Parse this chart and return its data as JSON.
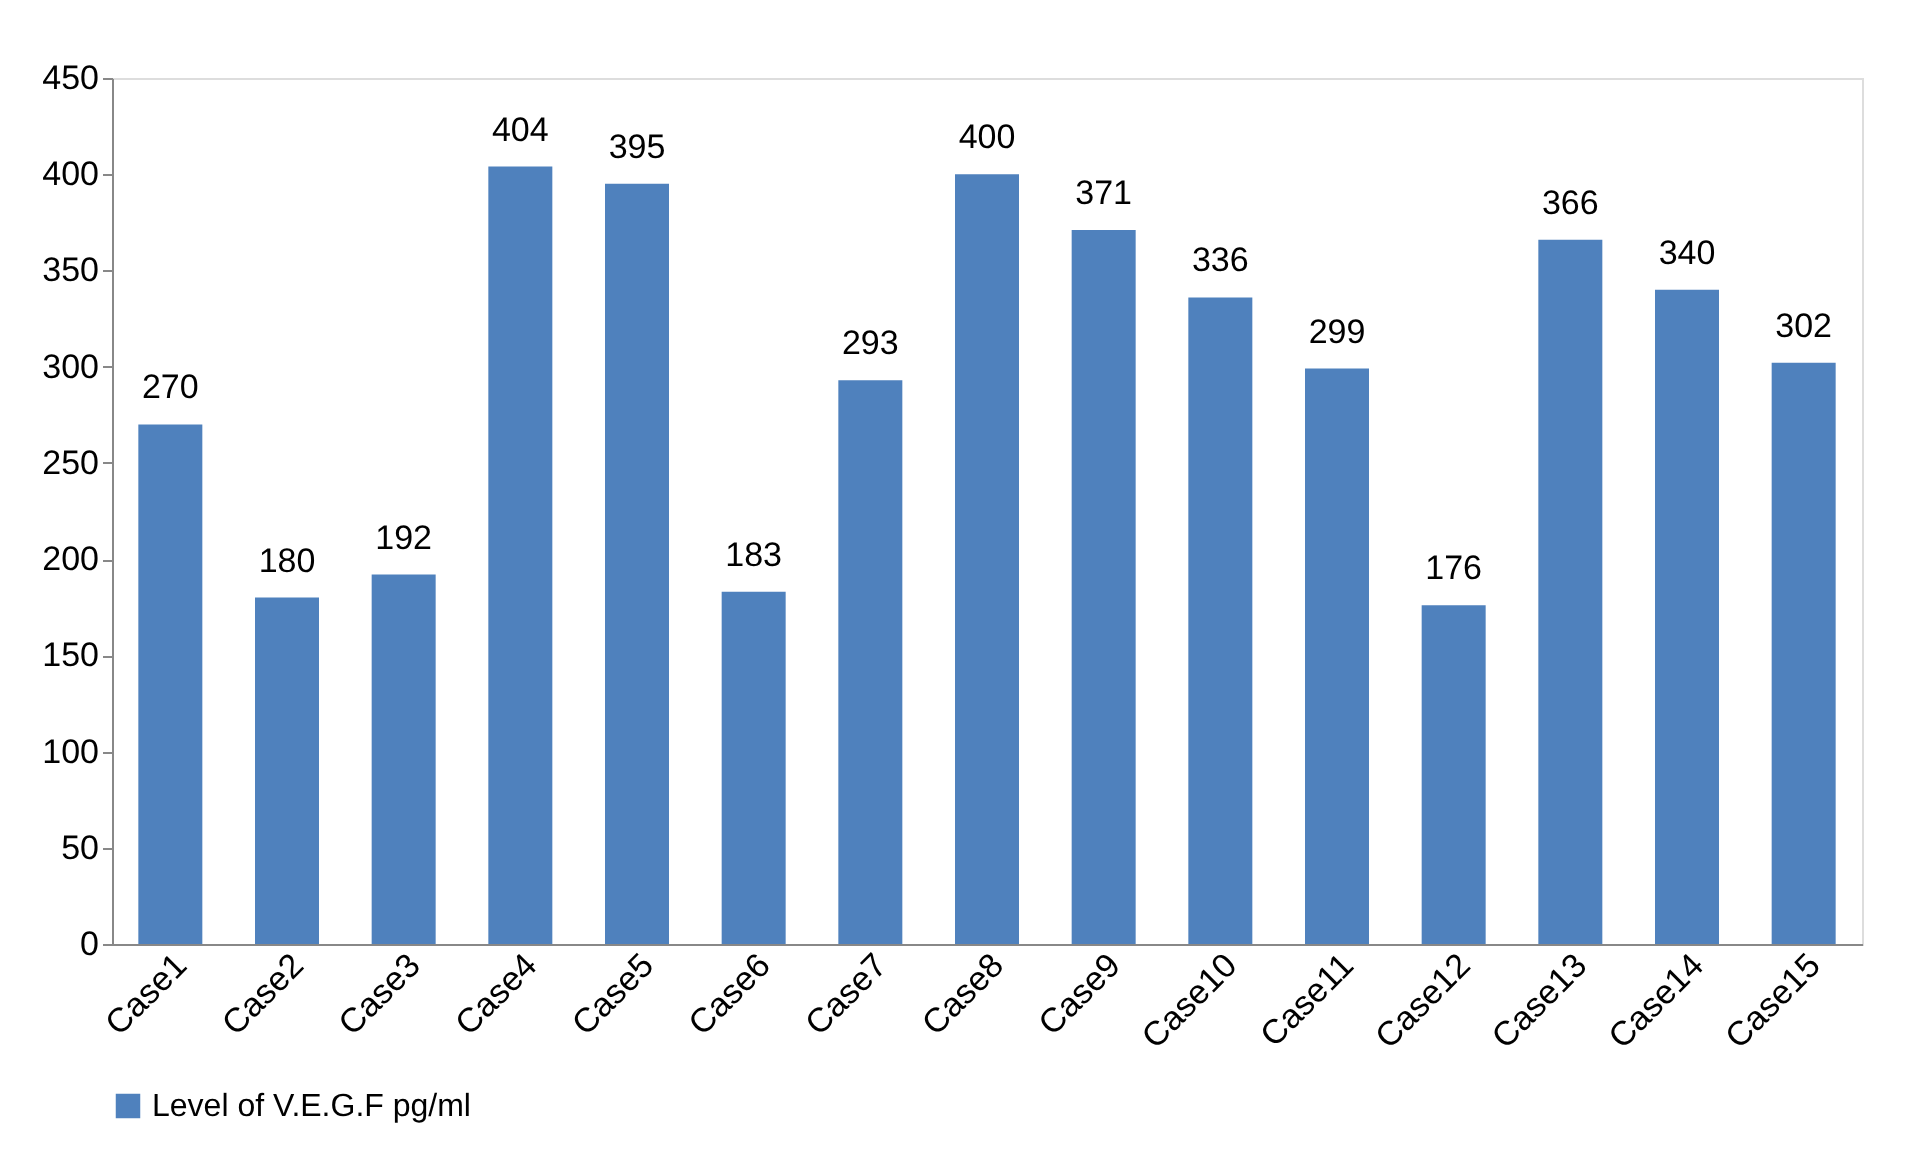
{
  "chart_data": {
    "type": "bar",
    "categories": [
      "Case1",
      "Case2",
      "Case3",
      "Case4",
      "Case5",
      "Case6",
      "Case7",
      "Case8",
      "Case9",
      "Case10",
      "Case11",
      "Case12",
      "Case13",
      "Case14",
      "Case15"
    ],
    "series": [
      {
        "name": "Level of V.E.G.F pg/ml",
        "color": "#4f81bd",
        "values": [
          270,
          180,
          192,
          404,
          395,
          183,
          293,
          400,
          371,
          336,
          299,
          176,
          366,
          340,
          302
        ]
      }
    ],
    "ylim": [
      0,
      450
    ],
    "yticks": [
      0,
      50,
      100,
      150,
      200,
      250,
      300,
      350,
      400,
      450
    ],
    "grid": false,
    "data_labels": true,
    "legend": "bottom"
  }
}
